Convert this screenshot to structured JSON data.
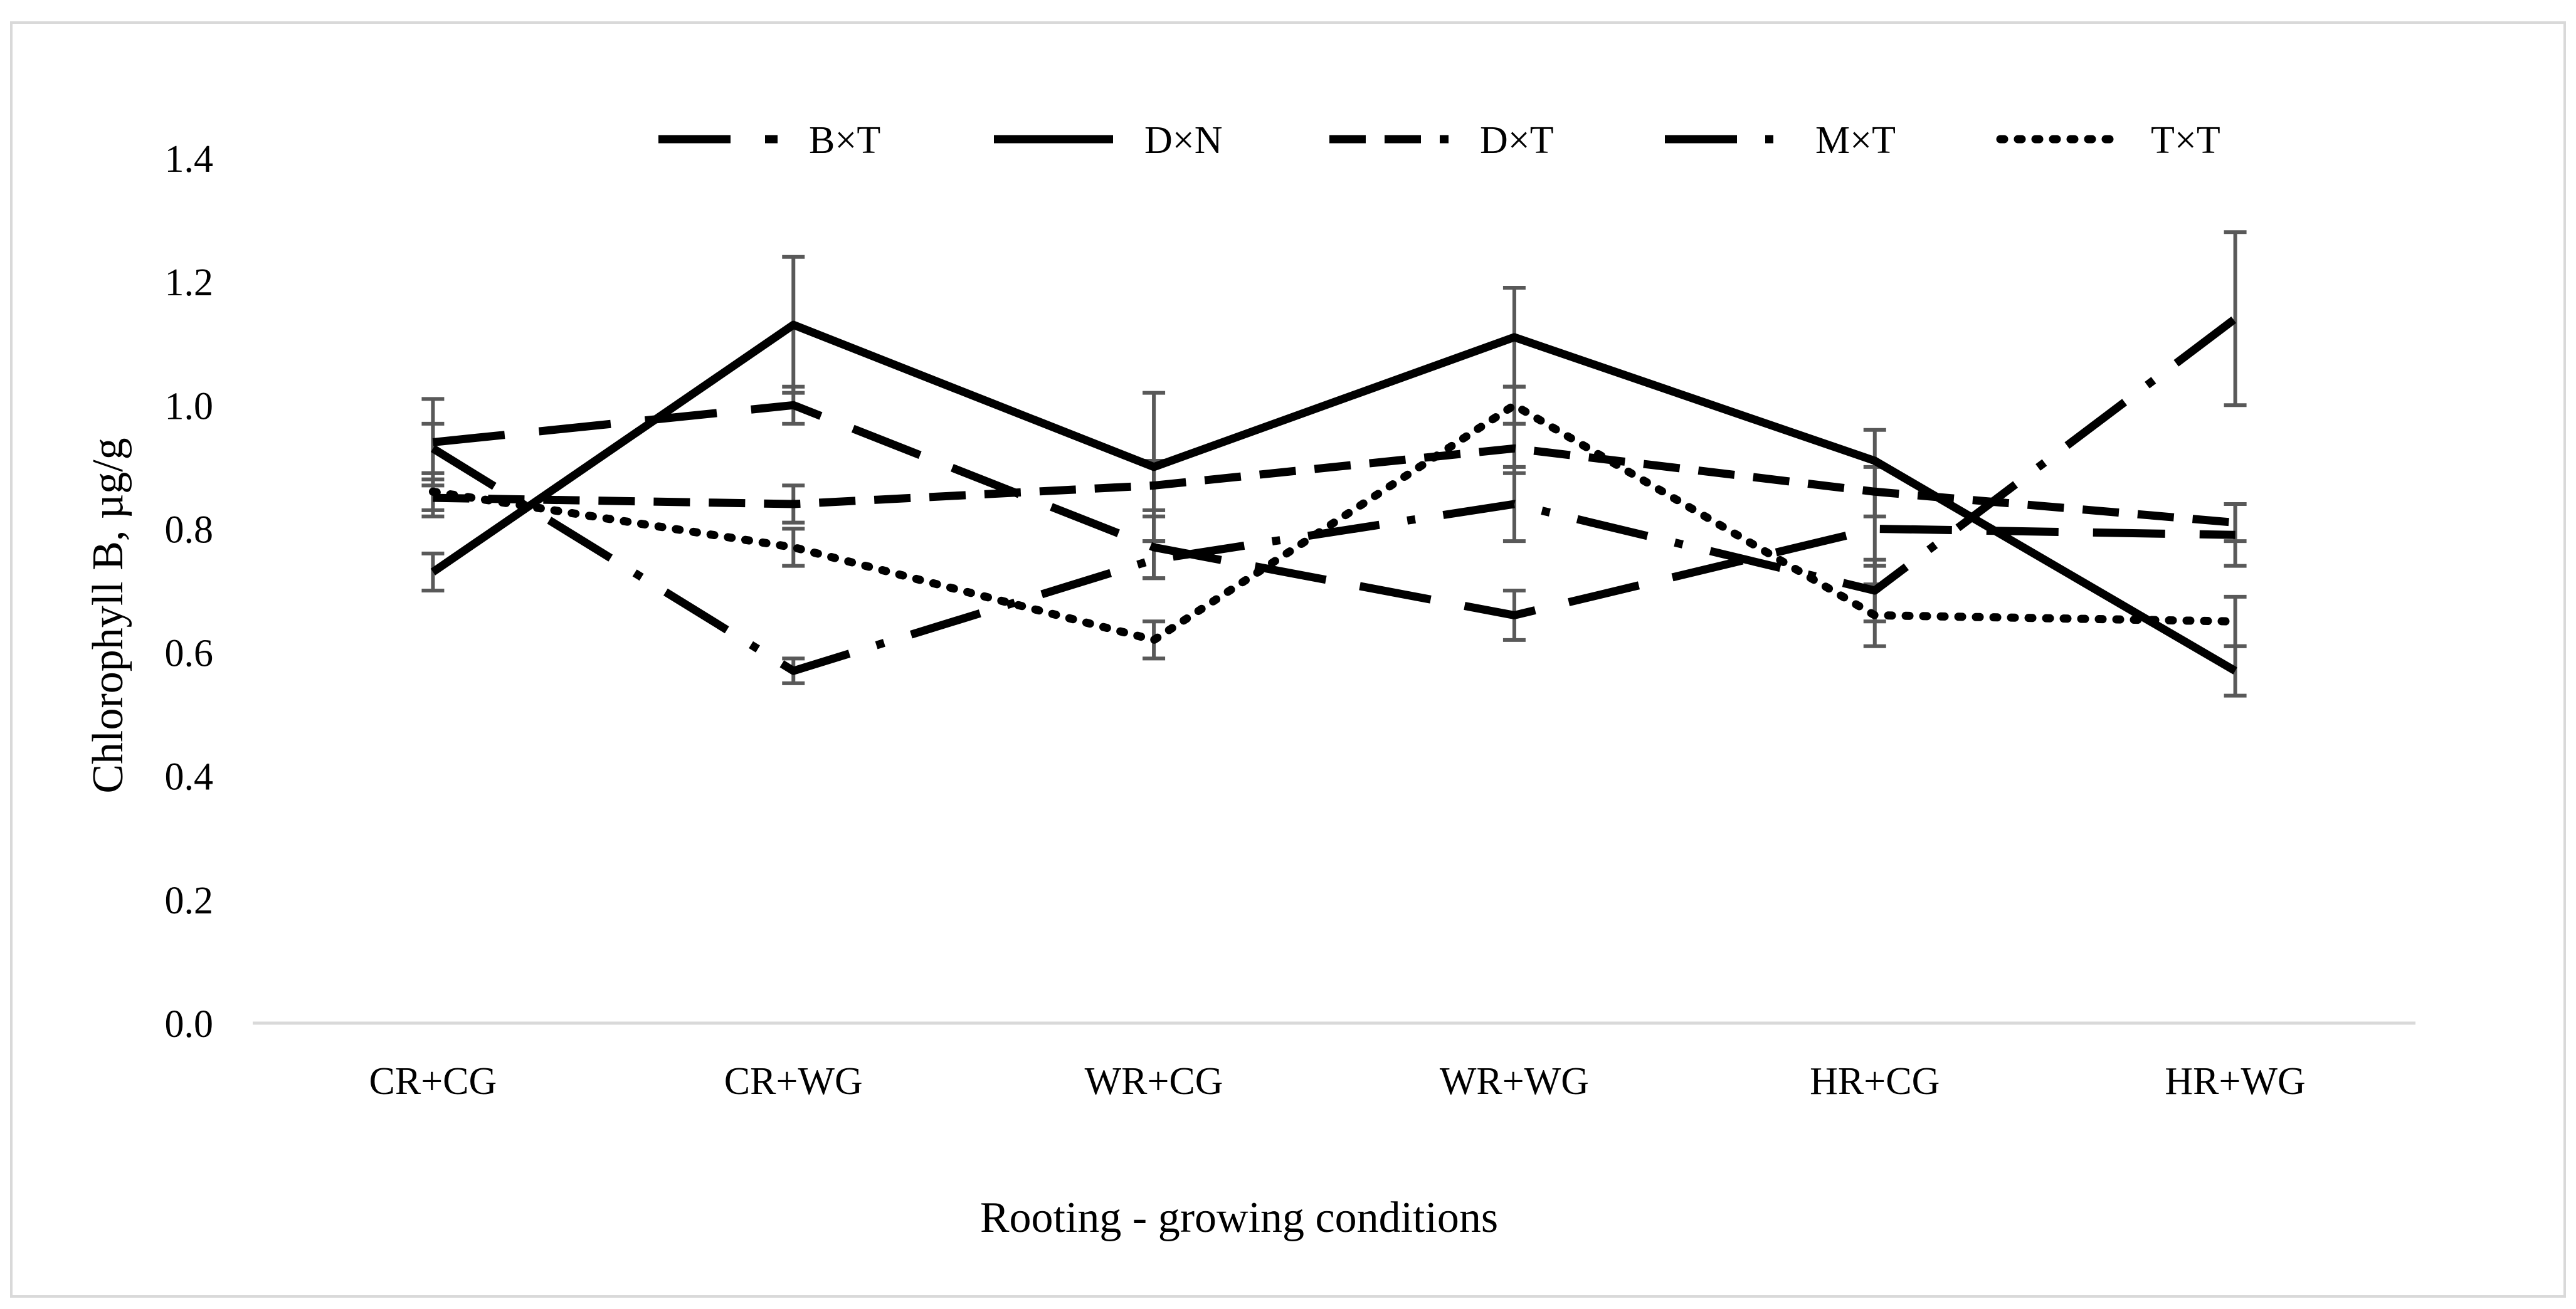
{
  "chart_data": {
    "type": "line",
    "title": "",
    "xlabel": "Rooting - growing conditions",
    "ylabel": "Chlorophyll B, µg/g",
    "categories": [
      "CR+CG",
      "CR+WG",
      "WR+CG",
      "WR+WG",
      "HR+CG",
      "HR+WG"
    ],
    "ylim": [
      0,
      1.4
    ],
    "ytick_labels": [
      "0.0",
      "0.2",
      "0.4",
      "0.6",
      "0.8",
      "1.0",
      "1.2",
      "1.4"
    ],
    "grid": false,
    "legend_position": "top",
    "series": [
      {
        "name": "B×T",
        "style": "long-dash",
        "values": [
          0.94,
          1.0,
          0.77,
          0.66,
          0.8,
          0.79
        ],
        "errors": [
          0.07,
          0.03,
          0.05,
          0.04,
          0.06,
          0.05
        ]
      },
      {
        "name": "D×N",
        "style": "solid",
        "values": [
          0.73,
          1.13,
          0.9,
          1.11,
          0.91,
          0.57
        ],
        "errors": [
          0.03,
          0.11,
          0.12,
          0.08,
          0.05,
          0.04
        ]
      },
      {
        "name": "D×T",
        "style": "dash",
        "values": [
          0.85,
          0.84,
          0.87,
          0.93,
          0.86,
          0.81
        ],
        "errors": [
          0.03,
          0.03,
          0.04,
          0.04,
          0.04,
          0.03
        ]
      },
      {
        "name": "M×T",
        "style": "dash-dot",
        "values": [
          0.93,
          0.57,
          0.75,
          0.84,
          0.7,
          1.14
        ],
        "errors": [
          0.04,
          0.02,
          0.03,
          0.06,
          0.05,
          0.14
        ]
      },
      {
        "name": "T×T",
        "style": "dotted",
        "values": [
          0.86,
          0.77,
          0.62,
          1.0,
          0.66,
          0.65
        ],
        "errors": [
          0.03,
          0.03,
          0.03,
          0.03,
          0.05,
          0.04
        ]
      }
    ]
  }
}
